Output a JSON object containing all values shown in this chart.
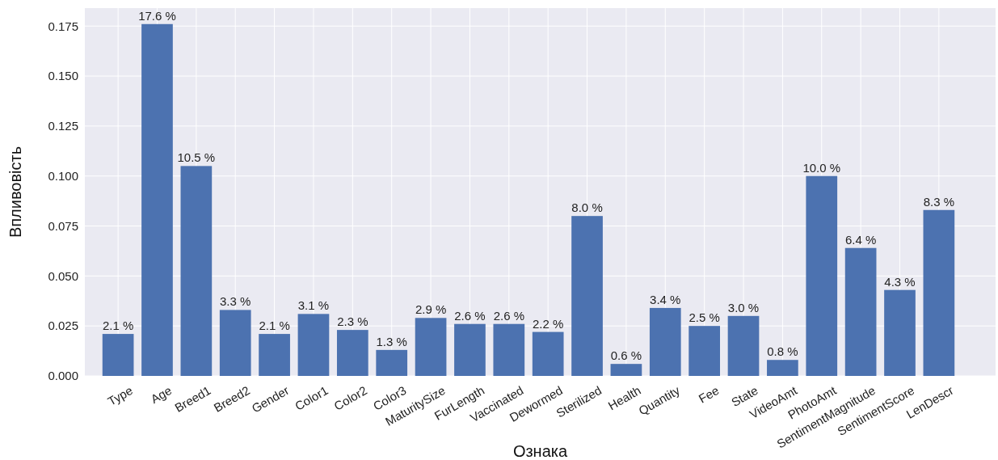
{
  "chart_data": {
    "type": "bar",
    "xlabel": "Ознака",
    "ylabel": "Впливовість",
    "categories": [
      "Type",
      "Age",
      "Breed1",
      "Breed2",
      "Gender",
      "Color1",
      "Color2",
      "Color3",
      "MaturitySize",
      "FurLength",
      "Vaccinated",
      "Dewormed",
      "Sterilized",
      "Health",
      "Quantity",
      "Fee",
      "State",
      "VideoAmt",
      "PhotoAmt",
      "SentimentMagnitude",
      "SentimentScore",
      "LenDescr"
    ],
    "values": [
      0.021,
      0.176,
      0.105,
      0.033,
      0.021,
      0.031,
      0.023,
      0.013,
      0.029,
      0.026,
      0.026,
      0.022,
      0.08,
      0.006,
      0.034,
      0.025,
      0.03,
      0.008,
      0.1,
      0.064,
      0.043,
      0.083
    ],
    "value_labels": [
      "2.1 %",
      "17.6 %",
      "10.5 %",
      "3.3 %",
      "2.1 %",
      "3.1 %",
      "2.3 %",
      "1.3 %",
      "2.9 %",
      "2.6 %",
      "2.6 %",
      "2.2 %",
      "8.0 %",
      "0.6 %",
      "3.4 %",
      "2.5 %",
      "3.0 %",
      "0.8 %",
      "10.0 %",
      "6.4 %",
      "4.3 %",
      "8.3 %"
    ],
    "color": "#4c72b0",
    "ylim": [
      0,
      0.184
    ],
    "yticks": [
      {
        "value": 0,
        "label": "0.000"
      },
      {
        "value": 0.025,
        "label": "0.025"
      },
      {
        "value": 0.05,
        "label": "0.050"
      },
      {
        "value": 0.075,
        "label": "0.075"
      },
      {
        "value": 0.1,
        "label": "0.100"
      },
      {
        "value": 0.125,
        "label": "0.125"
      },
      {
        "value": 0.15,
        "label": "0.150"
      },
      {
        "value": 0.175,
        "label": "0.175"
      }
    ],
    "grid": true
  }
}
